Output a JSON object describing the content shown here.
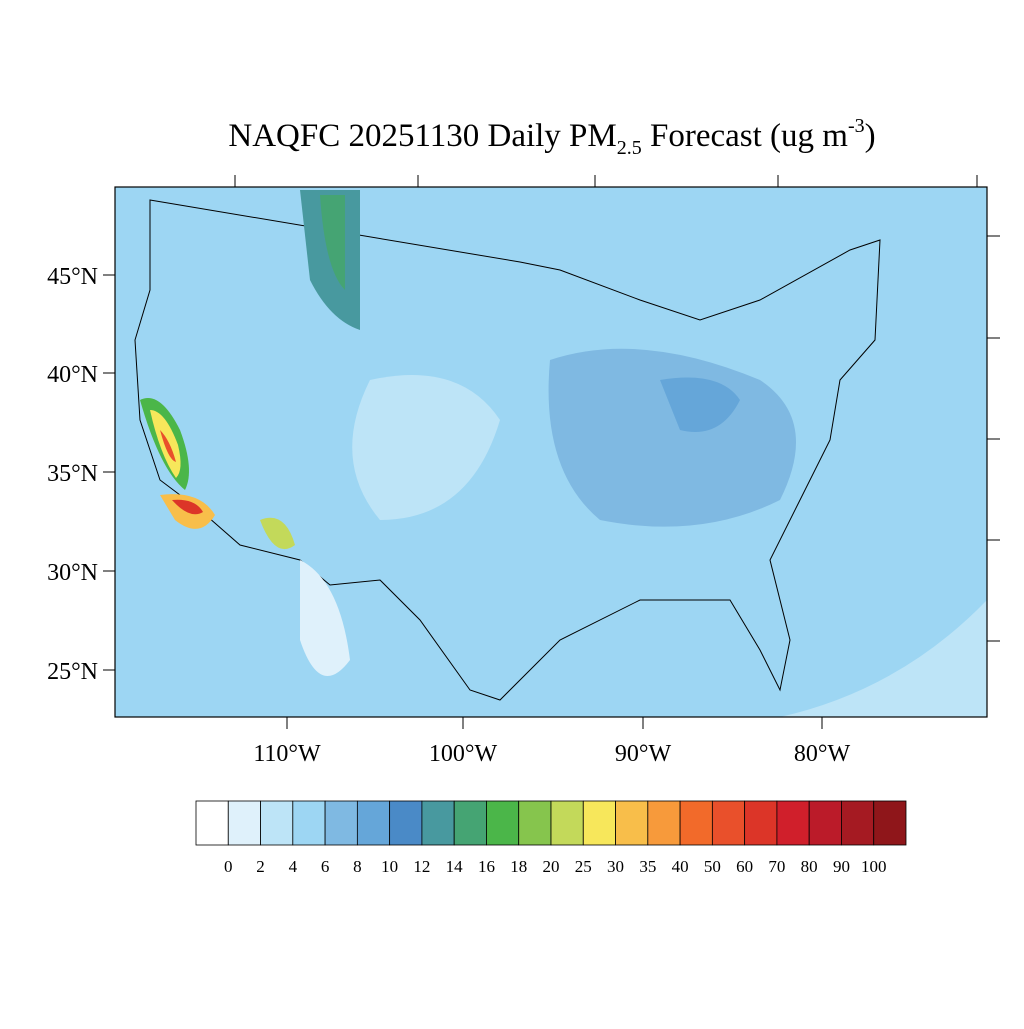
{
  "title": {
    "main": "NAQFC 20251130 Daily PM",
    "subscript": "2.5",
    "after": " Forecast (ug m",
    "superscript": "-3",
    "close": ")"
  },
  "map": {
    "lat_labels": [
      "45°N",
      "40°N",
      "35°N",
      "30°N",
      "25°N"
    ],
    "lon_labels": [
      "110°W",
      "100°W",
      "90°W",
      "80°W"
    ]
  },
  "colorbar": {
    "colors": [
      "#ffffff",
      "#dff1fb",
      "#bde4f7",
      "#9dd6f3",
      "#7fb9e2",
      "#65a6d9",
      "#4a8ac7",
      "#48999f",
      "#45a473",
      "#4bb649",
      "#86c54d",
      "#c3d95a",
      "#f7e75b",
      "#f8be4a",
      "#f79a3b",
      "#f26a2a",
      "#e9502b",
      "#dc3528",
      "#d01f2b",
      "#bb1b29",
      "#a51a22",
      "#8f161a"
    ],
    "labels": [
      0,
      2,
      4,
      6,
      8,
      10,
      12,
      14,
      16,
      18,
      20,
      25,
      30,
      35,
      40,
      50,
      60,
      70,
      80,
      90,
      100
    ]
  }
}
